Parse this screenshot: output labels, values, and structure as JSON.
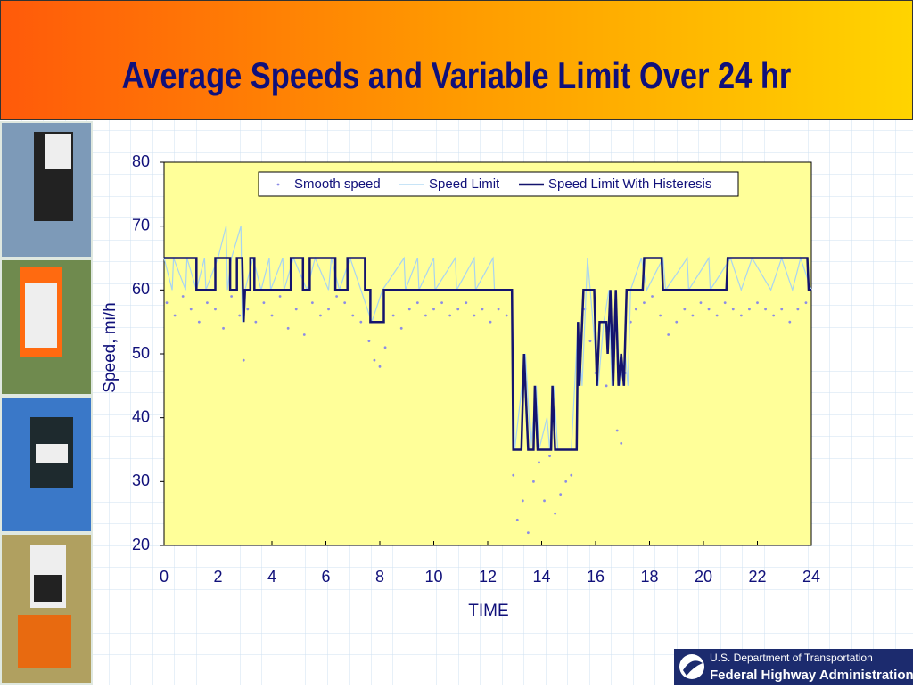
{
  "chart_data": {
    "type": "line",
    "title": "Average Speeds and Variable Limit Over 24 hr",
    "xlabel": "TIME",
    "ylabel": "Speed, mi/h",
    "xlim": [
      0,
      24
    ],
    "xticks": [
      0,
      2,
      4,
      6,
      8,
      10,
      12,
      14,
      16,
      18,
      20,
      22,
      24
    ],
    "ylim": [
      20,
      80
    ],
    "yticks": [
      20,
      30,
      40,
      50,
      60,
      70,
      80
    ],
    "series": [
      {
        "name": "Smooth speed",
        "color": "#8c8ce6",
        "mode": "markers",
        "x": [
          0.1,
          0.4,
          0.7,
          1.0,
          1.3,
          1.6,
          1.9,
          2.2,
          2.5,
          2.8,
          2.95,
          3.1,
          3.4,
          3.7,
          4.0,
          4.3,
          4.6,
          4.9,
          5.2,
          5.5,
          5.8,
          6.1,
          6.4,
          6.7,
          7.0,
          7.3,
          7.6,
          7.8,
          8.0,
          8.2,
          8.5,
          8.8,
          9.1,
          9.4,
          9.7,
          10.0,
          10.3,
          10.6,
          10.9,
          11.2,
          11.5,
          11.8,
          12.1,
          12.4,
          12.7,
          12.95,
          13.1,
          13.3,
          13.5,
          13.7,
          13.9,
          14.1,
          14.3,
          14.5,
          14.7,
          14.9,
          15.1,
          15.4,
          15.6,
          15.8,
          16.0,
          16.2,
          16.4,
          16.6,
          16.8,
          16.95,
          17.1,
          17.3,
          17.5,
          17.8,
          18.1,
          18.4,
          18.7,
          19.0,
          19.3,
          19.6,
          19.9,
          20.2,
          20.5,
          20.8,
          21.1,
          21.4,
          21.7,
          22.0,
          22.3,
          22.6,
          22.9,
          23.2,
          23.5,
          23.8
        ],
        "values": [
          58,
          56,
          59,
          57,
          55,
          58,
          57,
          54,
          59,
          56,
          49,
          57,
          55,
          58,
          56,
          59,
          54,
          57,
          53,
          58,
          56,
          57,
          59,
          58,
          56,
          55,
          52,
          49,
          48,
          51,
          56,
          54,
          57,
          58,
          56,
          57,
          58,
          56,
          57,
          58,
          56,
          57,
          55,
          57,
          56,
          31,
          24,
          27,
          22,
          30,
          33,
          27,
          34,
          25,
          28,
          30,
          31,
          50,
          57,
          52,
          47,
          55,
          45,
          50,
          38,
          36,
          47,
          55,
          57,
          58,
          59,
          56,
          53,
          55,
          57,
          56,
          58,
          57,
          56,
          58,
          57,
          56,
          57,
          58,
          57,
          56,
          57,
          55,
          57,
          58
        ]
      },
      {
        "name": "Speed Limit",
        "color": "#a8d4f2",
        "mode": "lines",
        "x": [
          0,
          0.3,
          0.35,
          0.8,
          0.85,
          1.2,
          1.5,
          1.55,
          2.0,
          2.3,
          2.35,
          2.5,
          2.85,
          2.9,
          3.0,
          3.3,
          3.6,
          3.9,
          3.95,
          4.4,
          4.45,
          4.8,
          5.3,
          5.6,
          6.1,
          6.2,
          6.5,
          6.9,
          7.3,
          7.7,
          8.1,
          8.9,
          8.95,
          9.4,
          9.45,
          10.0,
          10.05,
          10.8,
          10.85,
          11.5,
          11.55,
          12.2,
          12.25,
          12.9,
          13.0,
          13.4,
          13.6,
          13.8,
          13.9,
          14.2,
          14.3,
          14.45,
          14.6,
          15.1,
          15.35,
          15.5,
          15.7,
          15.8,
          16.1,
          16.3,
          16.5,
          16.6,
          16.75,
          16.9,
          17.1,
          17.2,
          17.3,
          17.7,
          17.9,
          18.5,
          18.6,
          19.4,
          19.45,
          20.2,
          20.25,
          21.0,
          21.4,
          21.8,
          22.5,
          22.9,
          23.3,
          23.6,
          24
        ],
        "values": [
          65,
          60,
          65,
          60,
          65,
          60,
          65,
          60,
          65,
          70,
          60,
          65,
          70,
          55,
          60,
          65,
          60,
          65,
          60,
          65,
          60,
          65,
          60,
          65,
          60,
          65,
          60,
          65,
          60,
          55,
          60,
          65,
          60,
          65,
          60,
          65,
          60,
          65,
          60,
          65,
          60,
          65,
          60,
          60,
          35,
          50,
          35,
          45,
          35,
          40,
          35,
          45,
          35,
          35,
          55,
          45,
          65,
          60,
          45,
          55,
          60,
          45,
          60,
          45,
          50,
          45,
          60,
          65,
          60,
          65,
          60,
          65,
          60,
          65,
          60,
          65,
          60,
          65,
          60,
          65,
          60,
          65,
          60
        ]
      },
      {
        "name": "Speed Limit With Histeresis",
        "color": "#14146e",
        "mode": "lines",
        "x": [
          0,
          1.2,
          1.2,
          1.9,
          1.9,
          2.45,
          2.45,
          2.7,
          2.7,
          2.9,
          2.95,
          3.0,
          3.2,
          3.2,
          3.35,
          3.35,
          4.7,
          4.7,
          5.15,
          5.15,
          5.4,
          5.4,
          6.35,
          6.35,
          6.8,
          6.8,
          7.45,
          7.45,
          7.65,
          7.65,
          8.15,
          8.15,
          12.9,
          12.95,
          13.25,
          13.35,
          13.5,
          13.7,
          13.75,
          13.85,
          14.35,
          14.4,
          14.5,
          15.3,
          15.35,
          15.4,
          15.55,
          15.95,
          16.05,
          16.15,
          16.4,
          16.45,
          16.55,
          16.65,
          16.75,
          16.85,
          16.95,
          17.05,
          17.15,
          17.75,
          17.8,
          18.45,
          18.5,
          20.85,
          20.9,
          23.85,
          23.9,
          24
        ],
        "values": [
          65,
          65,
          60,
          60,
          65,
          65,
          60,
          60,
          65,
          65,
          55,
          60,
          60,
          65,
          65,
          60,
          60,
          65,
          65,
          60,
          60,
          65,
          65,
          60,
          60,
          65,
          65,
          60,
          60,
          55,
          55,
          60,
          60,
          35,
          35,
          50,
          35,
          35,
          45,
          35,
          35,
          45,
          35,
          35,
          55,
          45,
          60,
          60,
          45,
          55,
          55,
          50,
          60,
          45,
          60,
          45,
          50,
          45,
          60,
          60,
          65,
          65,
          60,
          60,
          65,
          65,
          60,
          60
        ]
      }
    ]
  },
  "footer": {
    "line1": "U.S. Department of Transportation",
    "line2": "Federal Highway Administration"
  }
}
